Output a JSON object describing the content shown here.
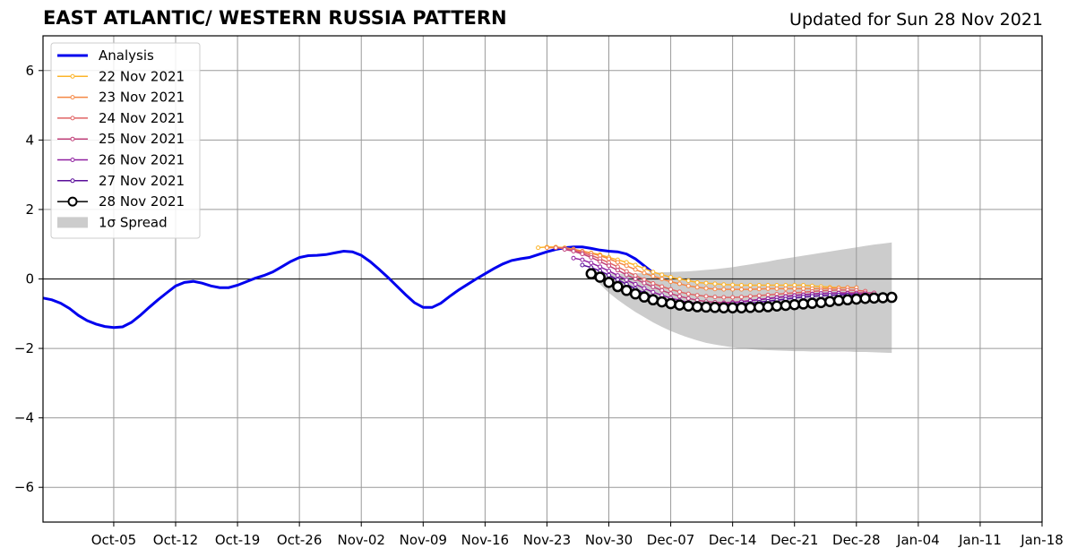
{
  "header": {
    "title": "EAST ATLANTIC/ WESTERN RUSSIA PATTERN",
    "updated": "Updated for Sun 28 Nov 2021"
  },
  "chart_data": {
    "type": "line",
    "title": "EAST ATLANTIC/ WESTERN RUSSIA PATTERN",
    "subtitle": "Updated for Sun 28 Nov 2021",
    "x_axis": {
      "start": "2021-09-27",
      "end": "2022-01-18",
      "ticks": [
        "Oct-05",
        "Oct-12",
        "Oct-19",
        "Oct-26",
        "Nov-02",
        "Nov-09",
        "Nov-16",
        "Nov-23",
        "Nov-30",
        "Dec-07",
        "Dec-14",
        "Dec-21",
        "Dec-28",
        "Jan-04",
        "Jan-11",
        "Jan-18"
      ],
      "tick_dates": [
        "2021-10-05",
        "2021-10-12",
        "2021-10-19",
        "2021-10-26",
        "2021-11-02",
        "2021-11-09",
        "2021-11-16",
        "2021-11-23",
        "2021-11-30",
        "2021-12-07",
        "2021-12-14",
        "2021-12-21",
        "2021-12-28",
        "2022-01-04",
        "2022-01-11",
        "2022-01-18"
      ]
    },
    "y_axis": {
      "ylim": [
        -7,
        7
      ],
      "ticks": [
        "6",
        "4",
        "2",
        "0",
        "−2",
        "−4",
        "−6"
      ],
      "tick_values": [
        6,
        4,
        2,
        0,
        -2,
        -4,
        -6
      ]
    },
    "grid": true,
    "legend": {
      "placement": "top-left"
    },
    "series": [
      {
        "name": "Analysis",
        "color": "#0000ee",
        "style": "line",
        "start": "2021-09-27",
        "values": [
          -0.55,
          -0.6,
          -0.7,
          -0.85,
          -1.05,
          -1.2,
          -1.3,
          -1.37,
          -1.4,
          -1.38,
          -1.25,
          -1.05,
          -0.82,
          -0.6,
          -0.4,
          -0.2,
          -0.1,
          -0.07,
          -0.12,
          -0.2,
          -0.25,
          -0.25,
          -0.18,
          -0.08,
          0.02,
          0.1,
          0.2,
          0.35,
          0.5,
          0.62,
          0.67,
          0.68,
          0.7,
          0.75,
          0.8,
          0.78,
          0.68,
          0.5,
          0.28,
          0.05,
          -0.2,
          -0.45,
          -0.68,
          -0.82,
          -0.82,
          -0.7,
          -0.5,
          -0.32,
          -0.16,
          0.0,
          0.15,
          0.3,
          0.43,
          0.53,
          0.58,
          0.62,
          0.7,
          0.78,
          0.85,
          0.9,
          0.92,
          0.92,
          0.88,
          0.83,
          0.8,
          0.78,
          0.72,
          0.58,
          0.38,
          0.18
        ]
      },
      {
        "name": "22 Nov 2021",
        "color": "#fcb42a",
        "style": "forecast",
        "start": "2021-11-22",
        "values": [
          0.9,
          0.92,
          0.92,
          0.9,
          0.86,
          0.8,
          0.75,
          0.7,
          0.62,
          0.55,
          0.48,
          0.4,
          0.3,
          0.2,
          0.12,
          0.05,
          0.0,
          -0.05,
          -0.1,
          -0.12,
          -0.14,
          -0.16,
          -0.17,
          -0.18,
          -0.18,
          -0.18,
          -0.18,
          -0.18,
          -0.18,
          -0.18,
          -0.18,
          -0.2,
          -0.22,
          -0.24,
          -0.25,
          -0.25
        ]
      },
      {
        "name": "23 Nov 2021",
        "color": "#f58744",
        "style": "forecast",
        "start": "2021-11-23",
        "values": [
          0.9,
          0.9,
          0.88,
          0.85,
          0.8,
          0.74,
          0.67,
          0.58,
          0.48,
          0.38,
          0.27,
          0.17,
          0.08,
          0.0,
          -0.08,
          -0.14,
          -0.2,
          -0.24,
          -0.27,
          -0.29,
          -0.3,
          -0.3,
          -0.3,
          -0.3,
          -0.29,
          -0.28,
          -0.28,
          -0.28,
          -0.28,
          -0.28,
          -0.28,
          -0.28,
          -0.27,
          -0.26,
          -0.25,
          -0.25
        ]
      },
      {
        "name": "24 Nov 2021",
        "color": "#e06364",
        "style": "forecast",
        "start": "2021-11-24",
        "values": [
          0.9,
          0.88,
          0.83,
          0.76,
          0.68,
          0.58,
          0.47,
          0.35,
          0.22,
          0.1,
          -0.02,
          -0.13,
          -0.22,
          -0.3,
          -0.37,
          -0.43,
          -0.47,
          -0.5,
          -0.52,
          -0.53,
          -0.53,
          -0.52,
          -0.5,
          -0.48,
          -0.46,
          -0.44,
          -0.42,
          -0.4,
          -0.38,
          -0.36,
          -0.34,
          -0.33,
          -0.32,
          -0.32,
          -0.33,
          -0.35
        ]
      },
      {
        "name": "25 Nov 2021",
        "color": "#c1407a",
        "style": "forecast",
        "start": "2021-11-25",
        "values": [
          0.85,
          0.8,
          0.72,
          0.62,
          0.5,
          0.38,
          0.25,
          0.12,
          0.0,
          -0.12,
          -0.23,
          -0.33,
          -0.42,
          -0.5,
          -0.56,
          -0.61,
          -0.65,
          -0.67,
          -0.68,
          -0.67,
          -0.65,
          -0.62,
          -0.59,
          -0.56,
          -0.53,
          -0.5,
          -0.47,
          -0.45,
          -0.43,
          -0.42,
          -0.41,
          -0.4,
          -0.4,
          -0.4,
          -0.4,
          -0.4
        ]
      },
      {
        "name": "26 Nov 2021",
        "color": "#8f1fa0",
        "style": "forecast",
        "start": "2021-11-26",
        "values": [
          0.6,
          0.55,
          0.46,
          0.35,
          0.23,
          0.1,
          -0.03,
          -0.15,
          -0.27,
          -0.38,
          -0.47,
          -0.55,
          -0.62,
          -0.67,
          -0.7,
          -0.72,
          -0.72,
          -0.71,
          -0.69,
          -0.66,
          -0.63,
          -0.6,
          -0.57,
          -0.54,
          -0.51,
          -0.48,
          -0.46,
          -0.44,
          -0.42,
          -0.41,
          -0.41,
          -0.42,
          -0.43,
          -0.44,
          -0.45,
          -0.45
        ]
      },
      {
        "name": "27 Nov 2021",
        "color": "#5a0e9a",
        "style": "forecast",
        "start": "2021-11-27",
        "values": [
          0.4,
          0.33,
          0.23,
          0.11,
          -0.02,
          -0.15,
          -0.28,
          -0.4,
          -0.5,
          -0.58,
          -0.65,
          -0.7,
          -0.74,
          -0.76,
          -0.77,
          -0.77,
          -0.76,
          -0.74,
          -0.72,
          -0.7,
          -0.67,
          -0.64,
          -0.61,
          -0.58,
          -0.55,
          -0.52,
          -0.5,
          -0.48,
          -0.47,
          -0.46,
          -0.46,
          -0.47,
          -0.48,
          -0.49,
          -0.5,
          -0.5
        ]
      },
      {
        "name": "28 Nov 2021",
        "color": "#000000",
        "style": "current",
        "start": "2021-11-28",
        "values": [
          0.15,
          0.05,
          -0.1,
          -0.22,
          -0.33,
          -0.43,
          -0.52,
          -0.6,
          -0.66,
          -0.71,
          -0.75,
          -0.78,
          -0.8,
          -0.81,
          -0.82,
          -0.83,
          -0.83,
          -0.83,
          -0.82,
          -0.81,
          -0.8,
          -0.78,
          -0.76,
          -0.74,
          -0.72,
          -0.7,
          -0.68,
          -0.65,
          -0.62,
          -0.6,
          -0.58,
          -0.56,
          -0.55,
          -0.54,
          -0.53
        ]
      }
    ],
    "spread": {
      "name": "1σ Spread",
      "color": "#cccccc",
      "start": "2021-11-28",
      "upper": [
        0.15,
        0.15,
        0.15,
        0.15,
        0.15,
        0.16,
        0.17,
        0.18,
        0.19,
        0.2,
        0.21,
        0.22,
        0.24,
        0.26,
        0.28,
        0.31,
        0.34,
        0.38,
        0.42,
        0.46,
        0.5,
        0.55,
        0.59,
        0.63,
        0.67,
        0.71,
        0.75,
        0.79,
        0.83,
        0.87,
        0.91,
        0.95,
        0.99,
        1.02,
        1.05
      ],
      "lower": [
        0.15,
        -0.15,
        -0.4,
        -0.6,
        -0.78,
        -0.95,
        -1.1,
        -1.25,
        -1.38,
        -1.5,
        -1.6,
        -1.69,
        -1.77,
        -1.84,
        -1.89,
        -1.93,
        -1.97,
        -2.0,
        -2.02,
        -2.04,
        -2.05,
        -2.06,
        -2.07,
        -2.08,
        -2.08,
        -2.09,
        -2.09,
        -2.09,
        -2.09,
        -2.09,
        -2.1,
        -2.1,
        -2.11,
        -2.12,
        -2.13
      ]
    }
  }
}
